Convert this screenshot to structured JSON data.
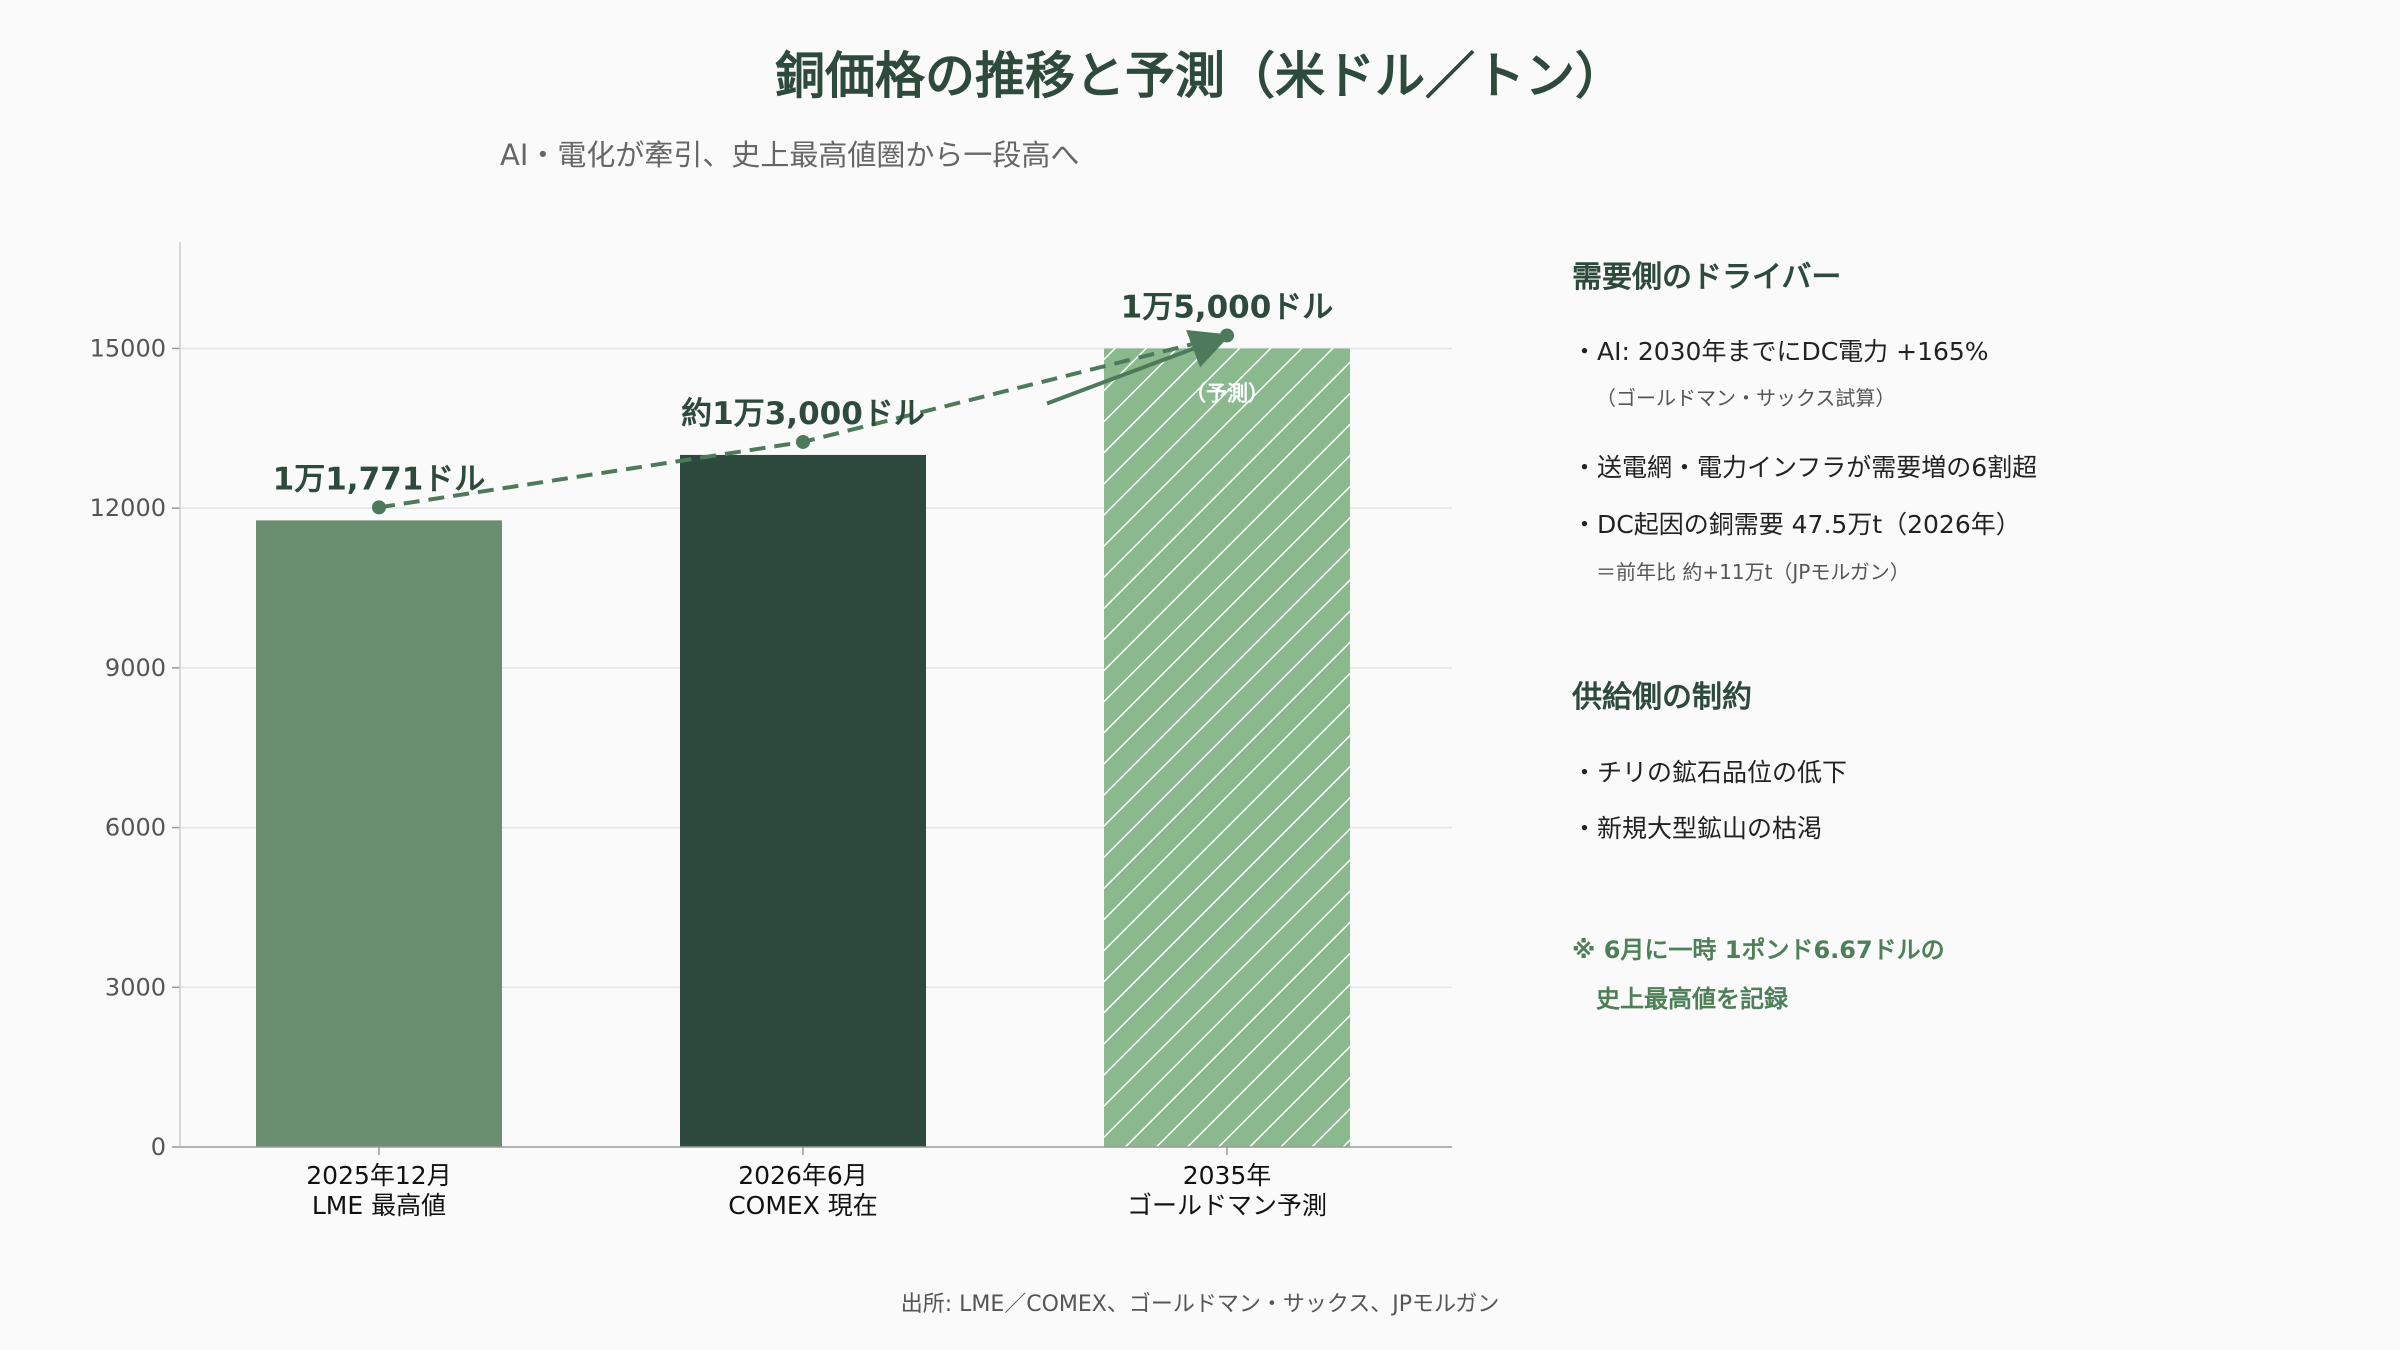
{
  "title": "銅価格の推移と予測（米ドル／トン）",
  "subtitle": "AI・電化が牽引、史上最高値圏から一段高へ",
  "chart_data": {
    "type": "bar",
    "categories": [
      "2025年12月\nLME 最高値",
      "2026年6月\nCOMEX 現在",
      "2035年\nゴールドマン予測"
    ],
    "values": [
      11771,
      13000,
      15000
    ],
    "data_labels": [
      "1万1,771ドル",
      "約1万3,000ドル",
      "1万5,000ドル"
    ],
    "bar_annotations": [
      "",
      "",
      "（予測）"
    ],
    "bar_colors": [
      "#6a8f70",
      "#2e4a3e",
      "#8ab98e"
    ],
    "bar_hatched": [
      false,
      false,
      true
    ],
    "ylim": [
      0,
      17000
    ],
    "yticks": [
      0,
      3000,
      6000,
      9000,
      12000,
      15000
    ],
    "grid": true,
    "trend_line": {
      "style": "dashed",
      "color": "#4d7a5a",
      "values": [
        11771,
        13000,
        15000
      ]
    },
    "xlabel": "",
    "ylabel": ""
  },
  "sidebar": {
    "demand": {
      "heading": "需要側のドライバー",
      "items": [
        {
          "text": "・AI: 2030年までにDC電力 +165%",
          "sub": "（ゴールドマン・サックス試算）"
        },
        {
          "text": "・送電網・電力インフラが需要増の6割超",
          "sub": ""
        },
        {
          "text": "・DC起因の銅需要 47.5万t（2026年）",
          "sub": "＝前年比 約+11万t（JPモルガン）"
        }
      ]
    },
    "supply": {
      "heading": "供給側の制約",
      "items": [
        {
          "text": "・チリの鉱石品位の低下"
        },
        {
          "text": "・新規大型鉱山の枯渇"
        }
      ]
    },
    "note": {
      "line1": "※ 6月に一時 1ポンド6.67ドルの",
      "line2": "史上最高値を記録"
    }
  },
  "source": "出所: LME／COMEX、ゴールドマン・サックス、JPモルガン",
  "colors": {
    "accent_dark": "#2e4a3c",
    "accent": "#4d8058",
    "axis": "#999999",
    "grid": "#e4e4e4"
  }
}
